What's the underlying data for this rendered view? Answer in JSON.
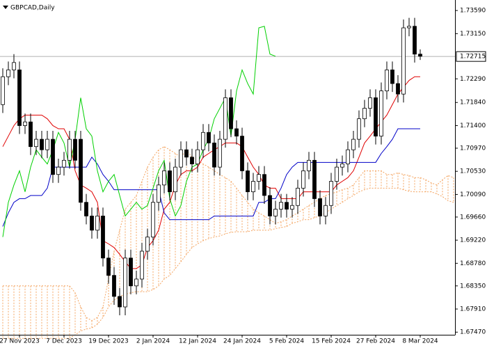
{
  "chart_data": {
    "type": "candlestick",
    "title": "GBPCAD,Daily",
    "categories": [
      null,
      null,
      null,
      "27 Nov 2023",
      null,
      null,
      null,
      null,
      null,
      null,
      null,
      "7 Dec 2023",
      null,
      null,
      null,
      null,
      null,
      null,
      null,
      "19 Dec 2023",
      null,
      null,
      null,
      null,
      null,
      null,
      null,
      "2 Jan 2024",
      null,
      null,
      null,
      null,
      null,
      null,
      null,
      "12 Jan 2024",
      null,
      null,
      null,
      null,
      null,
      null,
      null,
      "24 Jan 2024",
      null,
      null,
      null,
      null,
      null,
      null,
      null,
      "5 Feb 2024",
      null,
      null,
      null,
      null,
      null,
      null,
      null,
      "15 Feb 2024",
      null,
      null,
      null,
      null,
      null,
      null,
      null,
      "27 Feb 2024",
      null,
      null,
      null,
      null,
      null,
      null,
      null,
      "8 Mar 2024",
      null,
      null,
      null,
      null,
      null,
      null
    ],
    "ohlc": [
      [
        1.718,
        1.7249,
        1.7164,
        1.7233
      ],
      [
        1.7233,
        1.7262,
        1.7217,
        1.7246
      ],
      [
        1.7246,
        1.7276,
        1.723,
        1.726
      ],
      [
        1.7246,
        1.7262,
        1.7124,
        1.714
      ],
      [
        1.714,
        1.7163,
        1.7124,
        1.7147
      ],
      [
        1.7147,
        1.7163,
        1.7084,
        1.71
      ],
      [
        1.71,
        1.713,
        1.7084,
        1.7114
      ],
      [
        1.7114,
        1.713,
        1.7078,
        1.7094
      ],
      [
        1.7094,
        1.713,
        1.7078,
        1.7114
      ],
      [
        1.7114,
        1.713,
        1.7031,
        1.7047
      ],
      [
        1.7047,
        1.7077,
        1.7031,
        1.7061
      ],
      [
        1.7061,
        1.709,
        1.7045,
        1.7074
      ],
      [
        1.7074,
        1.713,
        1.7058,
        1.7114
      ],
      [
        1.7114,
        1.713,
        1.7058,
        1.7074
      ],
      [
        1.7114,
        1.713,
        1.6978,
        1.6994
      ],
      [
        1.6994,
        1.701,
        1.6952,
        1.6968
      ],
      [
        1.6968,
        1.6984,
        1.6925,
        1.6941
      ],
      [
        1.6941,
        1.6984,
        1.6925,
        1.6968
      ],
      [
        1.6968,
        1.6984,
        1.6872,
        1.6888
      ],
      [
        1.6888,
        1.6904,
        1.6839,
        1.6855
      ],
      [
        1.6855,
        1.6871,
        1.6799,
        1.6815
      ],
      [
        1.6815,
        1.6831,
        1.6779,
        1.6795
      ],
      [
        1.6795,
        1.6904,
        1.6779,
        1.6888
      ],
      [
        1.6888,
        1.6904,
        1.6819,
        1.6835
      ],
      [
        1.6835,
        1.6864,
        1.6819,
        1.6848
      ],
      [
        1.6848,
        1.6917,
        1.6832,
        1.6901
      ],
      [
        1.6901,
        1.6944,
        1.6885,
        1.6928
      ],
      [
        1.6928,
        1.701,
        1.6912,
        1.6994
      ],
      [
        1.6994,
        1.7043,
        1.6978,
        1.7027
      ],
      [
        1.7027,
        1.707,
        1.7011,
        1.7054
      ],
      [
        1.7054,
        1.707,
        1.6998,
        1.7014
      ],
      [
        1.7014,
        1.7077,
        1.6998,
        1.7061
      ],
      [
        1.7061,
        1.711,
        1.7045,
        1.7094
      ],
      [
        1.7094,
        1.711,
        1.7064,
        1.708
      ],
      [
        1.708,
        1.7096,
        1.7051,
        1.7067
      ],
      [
        1.7067,
        1.711,
        1.7051,
        1.7094
      ],
      [
        1.7094,
        1.7143,
        1.7078,
        1.7127
      ],
      [
        1.7127,
        1.7143,
        1.7091,
        1.7107
      ],
      [
        1.7107,
        1.7123,
        1.7045,
        1.7061
      ],
      [
        1.7061,
        1.713,
        1.7045,
        1.7114
      ],
      [
        1.7114,
        1.7209,
        1.7098,
        1.7193
      ],
      [
        1.7193,
        1.7209,
        1.7118,
        1.7134
      ],
      [
        1.7134,
        1.715,
        1.7104,
        1.712
      ],
      [
        1.712,
        1.7136,
        1.7038,
        1.7054
      ],
      [
        1.7054,
        1.707,
        1.6998,
        1.7014
      ],
      [
        1.7014,
        1.705,
        1.6998,
        1.7034
      ],
      [
        1.7034,
        1.7063,
        1.7018,
        1.7047
      ],
      [
        1.7047,
        1.7063,
        1.6991,
        1.7007
      ],
      [
        1.7007,
        1.7023,
        1.6952,
        1.6968
      ],
      [
        1.6968,
        1.6997,
        1.6952,
        1.6981
      ],
      [
        1.6981,
        1.701,
        1.6965,
        1.6994
      ],
      [
        1.6994,
        1.701,
        1.6965,
        1.6981
      ],
      [
        1.6981,
        1.7004,
        1.6965,
        1.6988
      ],
      [
        1.6988,
        1.7037,
        1.6972,
        1.7021
      ],
      [
        1.7021,
        1.707,
        1.7005,
        1.7054
      ],
      [
        1.7054,
        1.709,
        1.7038,
        1.7074
      ],
      [
        1.7074,
        1.709,
        1.6985,
        1.7001
      ],
      [
        1.7001,
        1.7017,
        1.6952,
        1.6968
      ],
      [
        1.6968,
        1.7004,
        1.6952,
        1.6988
      ],
      [
        1.6988,
        1.705,
        1.6972,
        1.7034
      ],
      [
        1.7034,
        1.7077,
        1.7018,
        1.7061
      ],
      [
        1.7061,
        1.7083,
        1.7045,
        1.7067
      ],
      [
        1.7067,
        1.711,
        1.7051,
        1.7094
      ],
      [
        1.7094,
        1.713,
        1.7078,
        1.7114
      ],
      [
        1.7114,
        1.7169,
        1.7098,
        1.7153
      ],
      [
        1.7153,
        1.7189,
        1.7137,
        1.7173
      ],
      [
        1.7173,
        1.7209,
        1.7157,
        1.7193
      ],
      [
        1.7193,
        1.7209,
        1.7104,
        1.712
      ],
      [
        1.712,
        1.7222,
        1.7104,
        1.7206
      ],
      [
        1.7206,
        1.7262,
        1.719,
        1.7246
      ],
      [
        1.7246,
        1.7262,
        1.7204,
        1.722
      ],
      [
        1.722,
        1.7236,
        1.7184,
        1.72
      ],
      [
        1.72,
        1.7342,
        1.7184,
        1.7326
      ],
      [
        1.7326,
        1.7345,
        1.731,
        1.7329
      ],
      [
        1.7329,
        1.7345,
        1.726,
        1.7276
      ],
      [
        1.7276,
        1.7285,
        1.7265,
        1.7272
      ],
      null,
      null,
      null,
      null,
      null,
      null
    ],
    "bull_color": "#ffffff",
    "bear_color": "#000000",
    "cloud": {
      "color": "#f4a460",
      "span_a": [
        1.6835,
        1.6835,
        1.6835,
        1.6835,
        1.6835,
        1.6835,
        1.6835,
        1.6835,
        1.6835,
        1.6835,
        1.6835,
        1.6835,
        1.6835,
        1.6822,
        1.6795,
        1.6775,
        1.6769,
        1.6775,
        1.6795,
        1.6848,
        1.6901,
        1.6941,
        1.6981,
        1.6994,
        1.7007,
        1.7034,
        1.7061,
        1.708,
        1.7094,
        1.71,
        1.7094,
        1.7087,
        1.708,
        1.7094,
        1.708,
        1.7074,
        1.7067,
        1.7061,
        1.7054,
        1.7047,
        1.7041,
        1.7034,
        1.7021,
        1.7007,
        1.6994,
        1.6981,
        1.6974,
        1.6968,
        1.6961,
        1.6954,
        1.6957,
        1.6961,
        1.6968,
        1.6974,
        1.6981,
        1.6988,
        1.6994,
        1.7001,
        1.7007,
        1.701,
        1.7014,
        1.7018,
        1.7021,
        1.7027,
        1.7041,
        1.7054,
        1.7054,
        1.7054,
        1.7054,
        1.7047,
        1.7047,
        1.705,
        1.7047,
        1.7045,
        1.7041,
        1.7041,
        1.7037,
        1.7031,
        1.7027,
        1.7037,
        1.7045,
        1.7041
      ],
      "span_b": [
        1.6735,
        1.6735,
        1.6735,
        1.6735,
        1.6735,
        1.6735,
        1.6735,
        1.6735,
        1.6735,
        1.6735,
        1.6735,
        1.6735,
        1.6735,
        1.6742,
        1.6749,
        1.6753,
        1.6755,
        1.6762,
        1.6775,
        1.6795,
        1.6808,
        1.6815,
        1.6819,
        1.6822,
        1.6824,
        1.6824,
        1.6824,
        1.6828,
        1.6835,
        1.6848,
        1.6855,
        1.6868,
        1.6881,
        1.6895,
        1.6908,
        1.6915,
        1.6921,
        1.6925,
        1.6928,
        1.693,
        1.6934,
        1.6937,
        1.6938,
        1.6938,
        1.6938,
        1.6941,
        1.6941,
        1.6941,
        1.6941,
        1.6944,
        1.6946,
        1.6948,
        1.6954,
        1.6957,
        1.6961,
        1.6961,
        1.6965,
        1.6968,
        1.6974,
        1.6981,
        1.6988,
        1.6994,
        1.7001,
        1.7007,
        1.7014,
        1.7018,
        1.7021,
        1.7021,
        1.7021,
        1.7021,
        1.7021,
        1.7021,
        1.7018,
        1.7015,
        1.7014,
        1.7014,
        1.7014,
        1.7014,
        1.701,
        1.7005,
        1.6997,
        1.6994
      ]
    },
    "lines": [
      {
        "color": "#e00000",
        "values": [
          1.71,
          1.712,
          1.714,
          1.7153,
          1.716,
          1.716,
          1.716,
          1.716,
          1.7153,
          1.714,
          1.7134,
          1.7134,
          1.7114,
          1.7054,
          1.7027,
          1.7021,
          1.7014,
          1.6994,
          1.6921,
          1.6915,
          1.6908,
          1.6895,
          1.6881,
          1.6868,
          1.6868,
          1.6875,
          1.6908,
          1.6921,
          1.6941,
          1.6981,
          1.6994,
          1.7027,
          1.7047,
          1.7054,
          1.7054,
          1.7061,
          1.708,
          1.7087,
          1.7094,
          1.71,
          1.7107,
          1.7107,
          1.7107,
          1.71,
          1.708,
          1.7061,
          1.7047,
          1.7027,
          1.7021,
          1.7021,
          1.7001,
          1.7001,
          1.7001,
          1.7001,
          1.7014,
          1.7014,
          1.7014,
          1.7014,
          1.7014,
          1.7014,
          1.7027,
          1.7034,
          1.7041,
          1.7054,
          1.708,
          1.7107,
          1.712,
          1.7134,
          1.7147,
          1.716,
          1.718,
          1.72,
          1.7213,
          1.7226,
          1.7233,
          1.7233,
          null,
          null,
          null,
          null,
          null,
          null
        ]
      },
      {
        "color": "#0000c8",
        "values": [
          1.6948,
          1.6974,
          1.6994,
          1.7001,
          1.7001,
          1.7007,
          1.7007,
          1.7007,
          1.7021,
          1.7061,
          1.7061,
          1.7061,
          1.7061,
          1.7061,
          1.7061,
          1.7061,
          1.708,
          1.7067,
          1.7047,
          1.7034,
          1.7018,
          1.7018,
          1.7018,
          1.7018,
          1.7018,
          1.7018,
          1.7018,
          1.7018,
          1.7018,
          1.6974,
          1.6961,
          1.6961,
          1.6961,
          1.6961,
          1.6961,
          1.6961,
          1.6961,
          1.6961,
          1.6968,
          1.6968,
          1.6968,
          1.6968,
          1.6968,
          1.6968,
          1.6968,
          1.6968,
          1.6994,
          1.6994,
          1.7001,
          1.7001,
          1.7021,
          1.7047,
          1.7061,
          1.707,
          1.707,
          1.707,
          1.707,
          1.707,
          1.707,
          1.707,
          1.707,
          1.707,
          1.707,
          1.707,
          1.707,
          1.707,
          1.707,
          1.707,
          1.7087,
          1.71,
          1.7114,
          1.7134,
          1.7134,
          1.7134,
          1.7134,
          1.7134,
          null,
          null,
          null,
          null,
          null,
          null
        ]
      },
      {
        "color": "#00d000",
        "values": [
          1.6928,
          1.6994,
          1.7027,
          1.7054,
          1.7014,
          1.7061,
          1.7094,
          1.708,
          1.7067,
          1.7094,
          1.7127,
          1.7107,
          1.7061,
          1.7114,
          1.7193,
          1.7134,
          1.712,
          1.7054,
          1.7014,
          1.7034,
          1.7047,
          1.7007,
          1.6968,
          1.6981,
          1.6994,
          1.6981,
          1.6988,
          1.7021,
          1.7054,
          1.7074,
          1.7001,
          1.6968,
          1.6988,
          1.7034,
          1.7061,
          1.7067,
          1.7094,
          1.7114,
          1.7153,
          1.7173,
          1.7193,
          1.712,
          1.7206,
          1.7246,
          1.722,
          1.72,
          1.7326,
          1.7329,
          1.7276,
          1.7272,
          null,
          null,
          null,
          null,
          null,
          null,
          null,
          null,
          null,
          null,
          null,
          null,
          null,
          null,
          null,
          null,
          null,
          null,
          null,
          null,
          null,
          null,
          null,
          null,
          null,
          null,
          null,
          null,
          null,
          null,
          null,
          null
        ]
      }
    ],
    "current_price": 1.72715,
    "ylim": [
      1.6742,
      1.7379
    ],
    "yticks": [
      {
        "value": 1.7359,
        "label": "1.73590"
      },
      {
        "value": 1.7315,
        "label": "1.73150"
      },
      {
        "value": 1.7229,
        "label": "1.72290"
      },
      {
        "value": 1.7184,
        "label": "1.71840"
      },
      {
        "value": 1.714,
        "label": "1.71400"
      },
      {
        "value": 1.7097,
        "label": "1.70970"
      },
      {
        "value": 1.7053,
        "label": "1.70530"
      },
      {
        "value": 1.7009,
        "label": "1.70090"
      },
      {
        "value": 1.6966,
        "label": "1.69660"
      },
      {
        "value": 1.6922,
        "label": "1.69220"
      },
      {
        "value": 1.6878,
        "label": "1.68780"
      },
      {
        "value": 1.6835,
        "label": "1.68350"
      },
      {
        "value": 1.6791,
        "label": "1.67910"
      },
      {
        "value": 1.6747,
        "label": "1.67470"
      }
    ]
  }
}
